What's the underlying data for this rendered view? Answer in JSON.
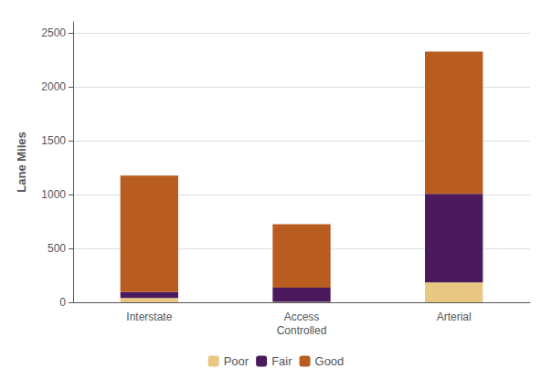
{
  "chart_data": {
    "type": "bar",
    "stacked": true,
    "categories": [
      "Interstate",
      "Access\nControlled",
      "Arterial"
    ],
    "series": [
      {
        "name": "Poor",
        "color": "#E8C882",
        "values": [
          40,
          5,
          185
        ]
      },
      {
        "name": "Fair",
        "color": "#4A1A5C",
        "values": [
          55,
          130,
          820
        ]
      },
      {
        "name": "Good",
        "color": "#B85C20",
        "values": [
          1080,
          590,
          1320
        ]
      }
    ],
    "ylabel": "Lane Miles",
    "ylim": [
      0,
      2600
    ],
    "yticks": [
      0,
      500,
      1000,
      1500,
      2000,
      2500
    ],
    "grid": true,
    "legend": "bottom"
  }
}
